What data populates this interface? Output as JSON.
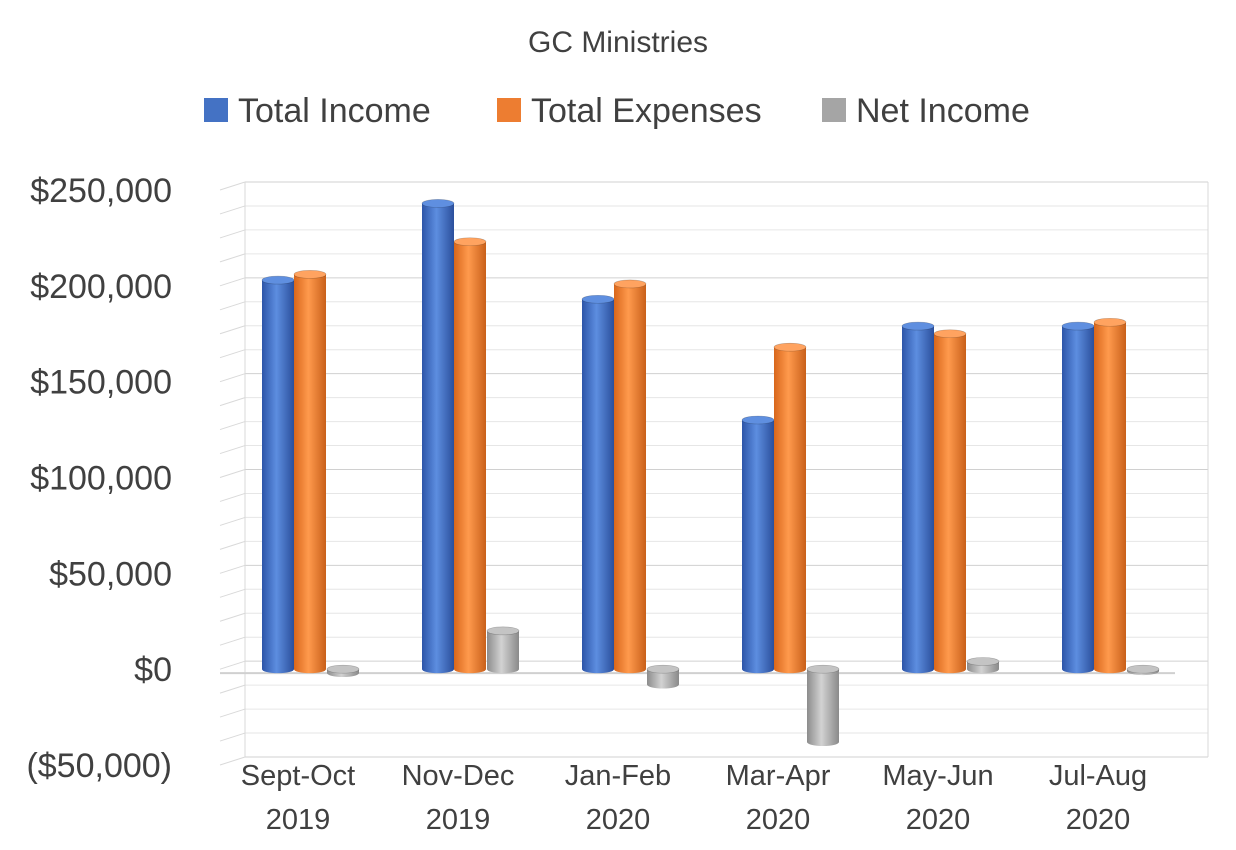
{
  "chart_data": {
    "type": "bar",
    "title": "GC Ministries",
    "categories": [
      [
        "Sept-Oct",
        "2019"
      ],
      [
        "Nov-Dec",
        "2019"
      ],
      [
        "Jan-Feb",
        "2020"
      ],
      [
        "Mar-Apr",
        "2020"
      ],
      [
        "May-Jun",
        "2020"
      ],
      [
        "Jul-Aug",
        "2020"
      ]
    ],
    "series": [
      {
        "name": "Total Income",
        "color": "#4472C4",
        "values": [
          203000,
          243000,
          193000,
          130000,
          179000,
          179000
        ]
      },
      {
        "name": "Total Expenses",
        "color": "#ED7D31",
        "values": [
          206000,
          223000,
          201000,
          168000,
          175000,
          181000
        ]
      },
      {
        "name": "Net Income",
        "color": "#A5A5A5",
        "values": [
          -2000,
          20000,
          -8000,
          -38000,
          4000,
          -1000
        ]
      }
    ],
    "yticks": [
      "$250,000",
      "$200,000",
      "$150,000",
      "$100,000",
      "$50,000",
      "$0",
      "($50,000)"
    ],
    "ytick_values": [
      250000,
      200000,
      150000,
      100000,
      50000,
      0,
      -50000
    ],
    "negative_tick_color": "#FF0000",
    "ylim": [
      -50000,
      250000
    ],
    "gridlines": true,
    "legend_position": "top"
  }
}
